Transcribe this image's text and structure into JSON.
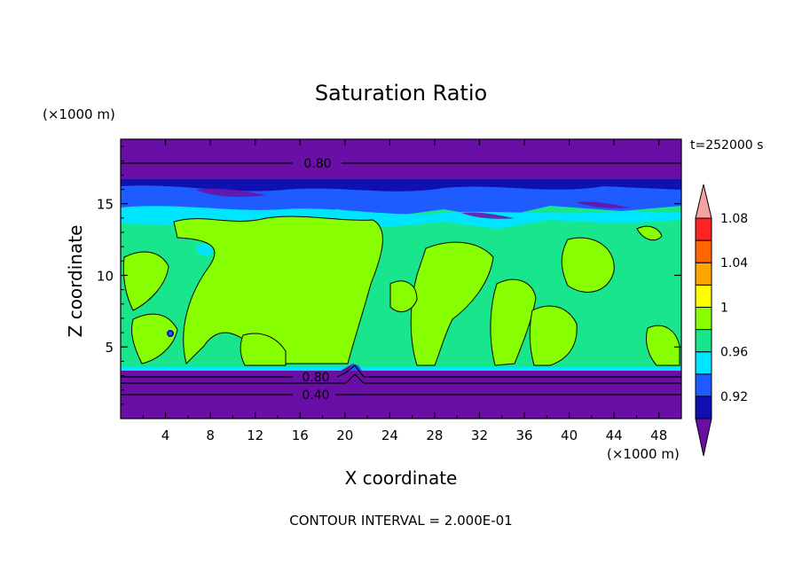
{
  "chart_data": {
    "type": "heatmap",
    "title": "Saturation Ratio",
    "xlabel": "X coordinate",
    "ylabel": "Z coordinate",
    "x_unit": "(×1000 m)",
    "y_unit": "(×1000 m)",
    "time_label": "t=252000 s",
    "footer": "CONTOUR INTERVAL = 2.000E-01",
    "xlim": [
      0,
      50
    ],
    "ylim": [
      0,
      19.5
    ],
    "x_ticks": [
      "4",
      "8",
      "12",
      "16",
      "20",
      "24",
      "28",
      "32",
      "36",
      "40",
      "44",
      "48"
    ],
    "y_ticks": [
      "5",
      "10",
      "15"
    ],
    "contour_labels": [
      "0.80",
      "0.80",
      "0.40"
    ],
    "colorbar": {
      "labels": [
        "1.08",
        "1.04",
        "1",
        "0.96",
        "0.92"
      ],
      "levels": [
        0.9,
        0.92,
        0.94,
        0.96,
        0.98,
        1.0,
        1.02,
        1.04,
        1.06,
        1.08,
        1.1
      ],
      "colors": [
        "#6a0fa6",
        "#1010b0",
        "#1e5cff",
        "#00e5ff",
        "#19e58c",
        "#88ff00",
        "#ffff00",
        "#ffa500",
        "#ff6600",
        "#ff2222",
        "#f4a3a3"
      ]
    },
    "bands": [
      {
        "z": [
          0.2,
          3.5
        ],
        "value": "< 0.92"
      },
      {
        "z": [
          3.5,
          3.8
        ],
        "value": "0.96"
      },
      {
        "z": [
          3.8,
          13.5
        ],
        "value": "0.98-1.00 with cells > 1"
      },
      {
        "z": [
          13.5,
          15.5
        ],
        "value": "0.94-0.98"
      },
      {
        "z": [
          15.5,
          17.0
        ],
        "value": "0.92-0.94"
      },
      {
        "z": [
          17.0,
          19.5
        ],
        "value": "< 0.92"
      }
    ]
  }
}
